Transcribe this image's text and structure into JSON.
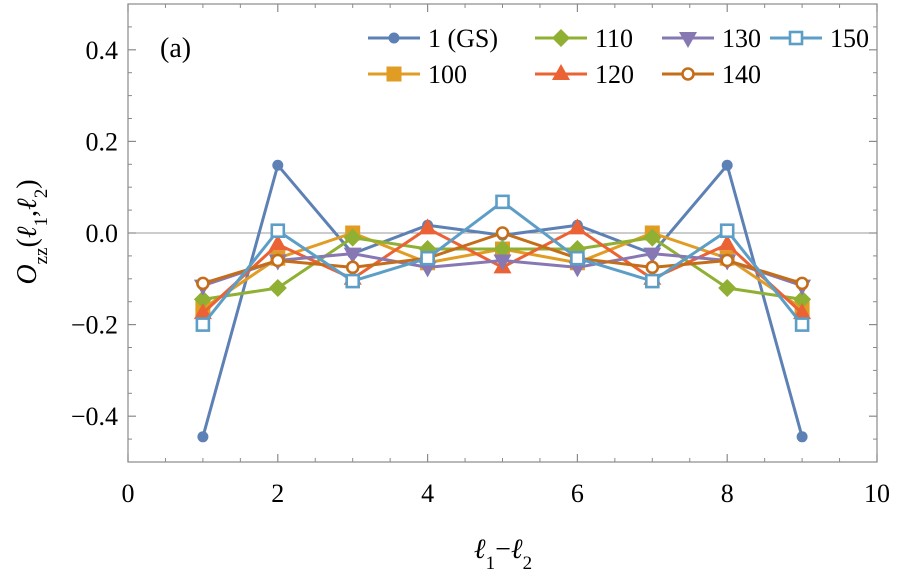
{
  "chart_data": {
    "type": "line",
    "panel_label": "(a)",
    "xlabel": "ℓ1−ℓ2",
    "ylabel": "Ozz(ℓ1,ℓ2)",
    "xlim": [
      0,
      10
    ],
    "ylim": [
      -0.5,
      0.5
    ],
    "xticks": [
      0,
      2,
      4,
      6,
      8,
      10
    ],
    "xtick_labels": [
      "0",
      "2",
      "4",
      "6",
      "8",
      "10"
    ],
    "yticks": [
      0.4,
      0.2,
      0.0,
      -0.2,
      -0.4
    ],
    "ytick_labels": [
      "0.4",
      "0.2",
      "0.0",
      "−0.2",
      "−0.4"
    ],
    "zero_line": true,
    "grid": false,
    "legend_position": "top-right",
    "x": [
      1,
      2,
      3,
      4,
      5,
      6,
      7,
      8,
      9
    ],
    "series": [
      {
        "name": "1 (GS)",
        "color": "#5e81b5",
        "marker": "circle-filled",
        "values": [
          -0.445,
          0.148,
          -0.045,
          0.017,
          -0.005,
          0.017,
          -0.045,
          0.148,
          -0.445
        ]
      },
      {
        "name": "100",
        "color": "#e19c24",
        "marker": "square-filled",
        "values": [
          -0.165,
          -0.055,
          0.0,
          -0.065,
          -0.035,
          -0.065,
          0.0,
          -0.055,
          -0.165
        ]
      },
      {
        "name": "110",
        "color": "#8fb032",
        "marker": "diamond-filled",
        "values": [
          -0.145,
          -0.12,
          -0.01,
          -0.035,
          -0.035,
          -0.035,
          -0.01,
          -0.12,
          -0.145
        ]
      },
      {
        "name": "120",
        "color": "#eb6235",
        "marker": "triangle-up-filled",
        "values": [
          -0.175,
          -0.025,
          -0.1,
          0.01,
          -0.075,
          0.01,
          -0.1,
          -0.025,
          -0.175
        ]
      },
      {
        "name": "130",
        "color": "#8778b3",
        "marker": "triangle-down-filled",
        "values": [
          -0.115,
          -0.06,
          -0.045,
          -0.075,
          -0.06,
          -0.075,
          -0.045,
          -0.06,
          -0.115
        ]
      },
      {
        "name": "140",
        "color": "#c56e1a",
        "marker": "circle-open",
        "values": [
          -0.11,
          -0.06,
          -0.075,
          -0.055,
          0.0,
          -0.055,
          -0.075,
          -0.06,
          -0.11
        ]
      },
      {
        "name": "150",
        "color": "#5d9ec7",
        "marker": "square-open",
        "values": [
          -0.2,
          0.005,
          -0.105,
          -0.055,
          0.068,
          -0.055,
          -0.105,
          0.005,
          -0.2
        ]
      }
    ]
  }
}
